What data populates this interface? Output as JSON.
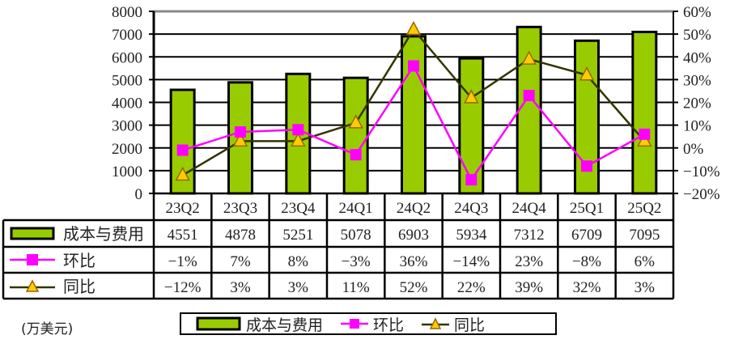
{
  "chart_data": {
    "type": "bar+line",
    "title": "",
    "unit_label": "(万美元)",
    "categories": [
      "23Q2",
      "23Q3",
      "23Q4",
      "24Q1",
      "24Q2",
      "24Q3",
      "24Q4",
      "25Q1",
      "25Q2"
    ],
    "series": [
      {
        "name": "成本与费用",
        "type": "bar",
        "axis": "left",
        "color": "#99cc00",
        "values": [
          4551,
          4878,
          5251,
          5078,
          6903,
          5934,
          7312,
          6709,
          7095
        ],
        "labels": [
          "4551",
          "4878",
          "5251",
          "5078",
          "6903",
          "5934",
          "7312",
          "6709",
          "7095"
        ]
      },
      {
        "name": "环比",
        "type": "line",
        "axis": "right",
        "color": "#ff00ff",
        "marker": "square",
        "values": [
          -1,
          7,
          8,
          -3,
          36,
          -14,
          23,
          -8,
          6
        ],
        "labels": [
          "−1%",
          "7%",
          "8%",
          "−3%",
          "36%",
          "−14%",
          "23%",
          "−8%",
          "6%"
        ]
      },
      {
        "name": "同比",
        "type": "line",
        "axis": "right",
        "color": "#333300",
        "marker": "triangle",
        "marker_color": "#ffcc00",
        "values": [
          -12,
          3,
          3,
          11,
          52,
          22,
          39,
          32,
          3
        ],
        "labels": [
          "−12%",
          "3%",
          "3%",
          "11%",
          "52%",
          "22%",
          "39%",
          "32%",
          "3%"
        ]
      }
    ],
    "left_axis": {
      "min": 0,
      "max": 8000,
      "step": 1000,
      "ticks": [
        "0",
        "1000",
        "2000",
        "3000",
        "4000",
        "5000",
        "6000",
        "7000",
        "8000"
      ]
    },
    "right_axis": {
      "min": -20,
      "max": 60,
      "step": 10,
      "ticks": [
        "−20%",
        "−10%",
        "0%",
        "10%",
        "20%",
        "30%",
        "40%",
        "50%",
        "60%"
      ]
    },
    "grid": true,
    "data_table": true,
    "legend_position": "bottom"
  },
  "legend": {
    "items": [
      "成本与费用",
      "环比",
      "同比"
    ]
  },
  "unit_label": "(万美元)"
}
